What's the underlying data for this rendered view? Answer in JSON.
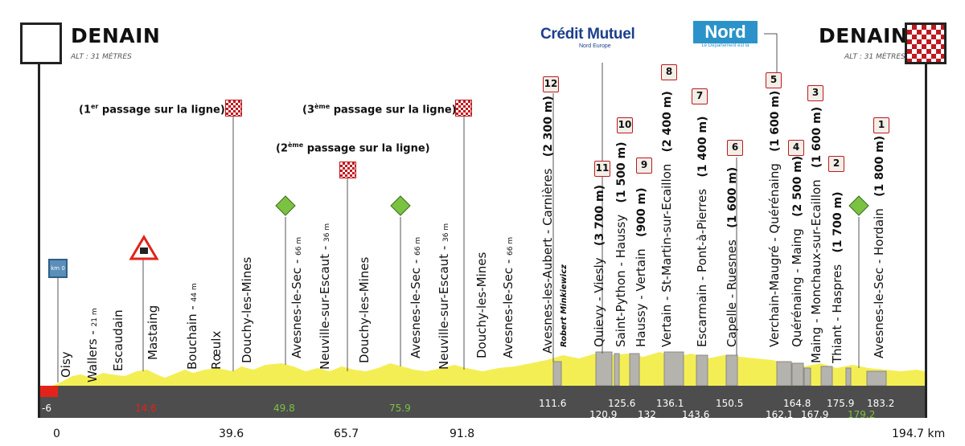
{
  "start": {
    "town": "DENAIN",
    "altitude": "ALT : 31 MÈTRES"
  },
  "finish": {
    "town": "DENAIN",
    "altitude": "ALT : 31 MÈTRES"
  },
  "sponsors": {
    "bank_name": "Crédit Mutuel",
    "bank_sub": "Nord Europe",
    "region_name": "Nord",
    "region_sub": "Le Département est là"
  },
  "km0_marker": "km 0",
  "passages": [
    {
      "ordinal": "1",
      "suffix": "er",
      "text": "passage sur la ligne"
    },
    {
      "ordinal": "2",
      "suffix": "ème",
      "text": "passage sur la ligne"
    },
    {
      "ordinal": "3",
      "suffix": "ème",
      "text": "passage sur la ligne"
    }
  ],
  "places": [
    {
      "name": "Oisy",
      "sub": ""
    },
    {
      "name": "Wallers",
      "sub": "21 m"
    },
    {
      "name": "Escaudain",
      "sub": ""
    },
    {
      "name": "Mastaing",
      "sub": ""
    },
    {
      "name": "Bouchain",
      "sub": "44 m"
    },
    {
      "name": "Rœulx",
      "sub": ""
    },
    {
      "name": "Douchy-les-Mines",
      "sub": ""
    },
    {
      "name": "Avesnes-le-Sec",
      "sub": "66 m"
    },
    {
      "name": "Neuville-sur-Escaut",
      "sub": "36 m"
    },
    {
      "name": "Douchy-les-Mines",
      "sub": ""
    },
    {
      "name": "Avesnes-le-Sec",
      "sub": "66 m"
    },
    {
      "name": "Neuville-sur-Escaut",
      "sub": "36 m"
    },
    {
      "name": "Douchy-les-Mines",
      "sub": ""
    },
    {
      "name": "Avesnes-le-Sec",
      "sub": "66 m"
    }
  ],
  "cobbles": [
    {
      "number": "12",
      "name": "Avesnes-les-Aubert - Carnières",
      "length": "(2 300 m)",
      "subtitle": "Robert Minkiewicz"
    },
    {
      "number": "11",
      "name": "Quievy - Viesly",
      "length": "(3 700 m)",
      "subtitle": ""
    },
    {
      "number": "10",
      "name": "Saint-Python - Haussy",
      "length": "(1 500 m)",
      "subtitle": ""
    },
    {
      "number": "9",
      "name": "Haussy - Vertain",
      "length": "(900 m)",
      "subtitle": ""
    },
    {
      "number": "8",
      "name": "Vertain - St-Martin-sur-Ecaillon",
      "length": "(2 400 m)",
      "subtitle": ""
    },
    {
      "number": "7",
      "name": "Escarmain - Pont-à-Pierres",
      "length": "(1 400 m)",
      "subtitle": ""
    },
    {
      "number": "6",
      "name": "Capelle - Ruesnes",
      "length": "(1 600 m)",
      "subtitle": ""
    },
    {
      "number": "5",
      "name": "Verchain-Maugré - Quérénaing",
      "length": "(1 600 m)",
      "subtitle": ""
    },
    {
      "number": "4",
      "name": "Quérénaing - Maing",
      "length": "(2 500 m)",
      "subtitle": ""
    },
    {
      "number": "3",
      "name": "Maing - Monchaux-sur-Ecaillon",
      "length": "(1 600 m)",
      "subtitle": ""
    },
    {
      "number": "2",
      "name": "Thiant - Haspres",
      "length": "(1 700 m)",
      "subtitle": ""
    },
    {
      "number": "1",
      "name": "Avesnes-le-Sec - Hordain",
      "length": "(1 800 m)",
      "subtitle": ""
    }
  ],
  "strip_values": [
    {
      "text": "-6",
      "color": "#ffffff"
    },
    {
      "text": "14.6",
      "color": "#e2231a"
    },
    {
      "text": "49.8",
      "color": "#7cc242"
    },
    {
      "text": "75.9",
      "color": "#7cc242"
    },
    {
      "text": "111.6",
      "color": "#ffffff"
    },
    {
      "text": "125.6",
      "color": "#ffffff"
    },
    {
      "text": "120.9",
      "color": "#ffffff"
    },
    {
      "text": "132",
      "color": "#ffffff"
    },
    {
      "text": "136.1",
      "color": "#ffffff"
    },
    {
      "text": "143.6",
      "color": "#ffffff"
    },
    {
      "text": "150.5",
      "color": "#ffffff"
    },
    {
      "text": "164.8",
      "color": "#ffffff"
    },
    {
      "text": "162.1",
      "color": "#ffffff"
    },
    {
      "text": "167.9",
      "color": "#ffffff"
    },
    {
      "text": "175.9",
      "color": "#ffffff"
    },
    {
      "text": "179.2",
      "color": "#7cc242"
    },
    {
      "text": "183.2",
      "color": "#ffffff"
    }
  ],
  "axis_labels": [
    "0",
    "39.6",
    "65.7",
    "91.8",
    "194.7 km"
  ],
  "colors": {
    "terrain": "#f4ee55",
    "strip": "#4d4d4d",
    "accent_red": "#c0181f",
    "feed_green": "#7cc242",
    "start_blue": "#5b8fb9"
  }
}
